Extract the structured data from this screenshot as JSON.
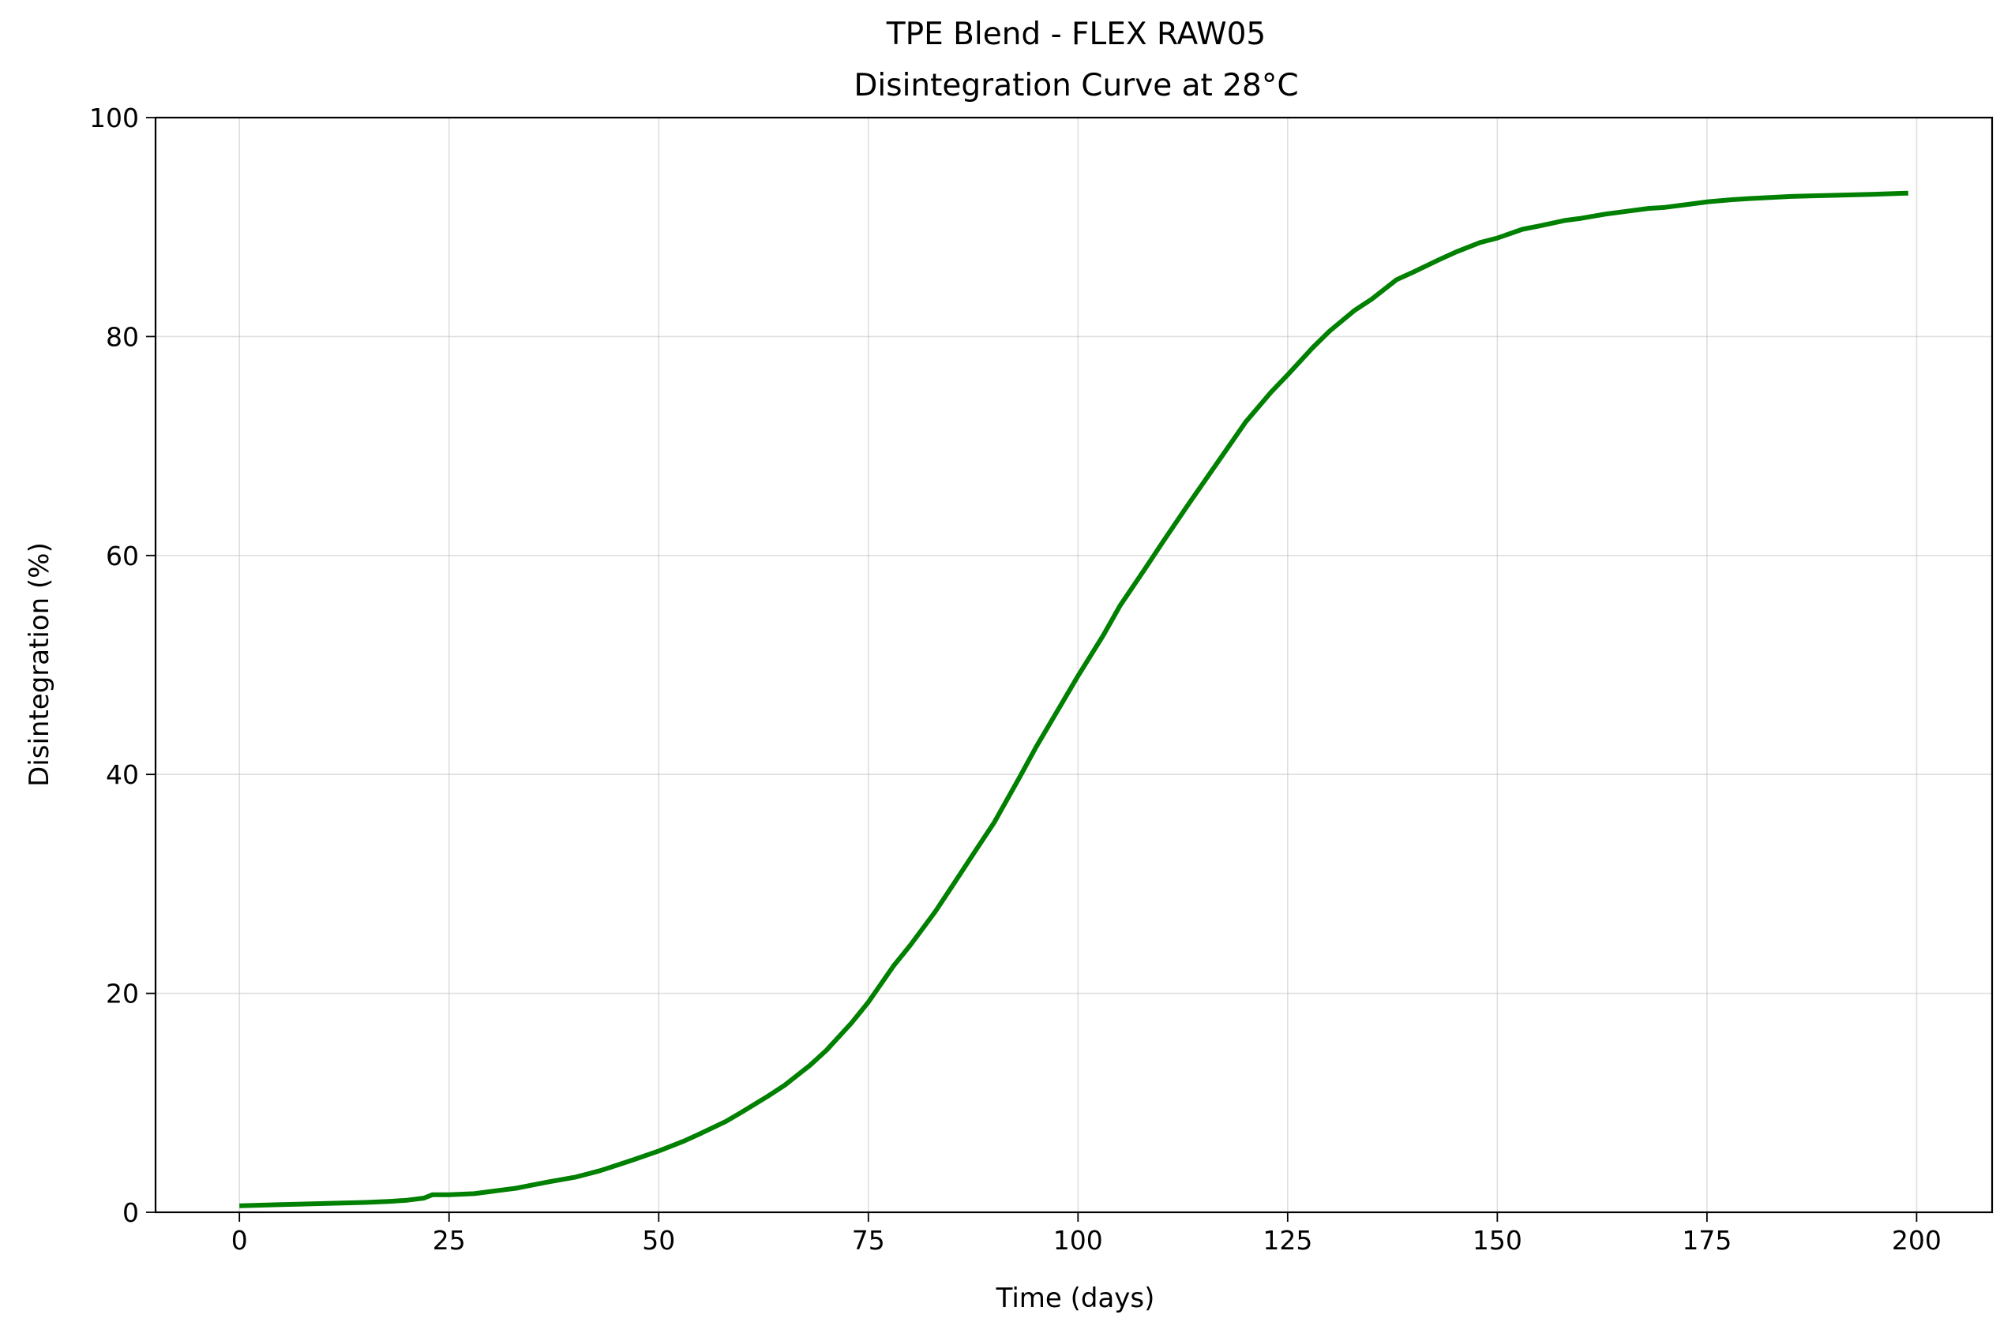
{
  "chart_data": {
    "type": "line",
    "title": [
      "TPE Blend - FLEX RAW05",
      "Disintegration Curve at 28°C"
    ],
    "xlabel": "Time (days)",
    "ylabel": "Disintegration (%)",
    "xlim": [
      -10,
      209
    ],
    "ylim": [
      0,
      100
    ],
    "xticks": [
      0,
      25,
      50,
      75,
      100,
      125,
      150,
      175,
      200
    ],
    "yticks": [
      0,
      20,
      40,
      60,
      80,
      100
    ],
    "grid": true,
    "series": [
      {
        "color": "#008000",
        "x": [
          0,
          5,
          10,
          15,
          18,
          20,
          22,
          23,
          25,
          28,
          30,
          33,
          35,
          37,
          40,
          43,
          45,
          47,
          50,
          53,
          55,
          58,
          60,
          63,
          65,
          68,
          70,
          73,
          75,
          78,
          80,
          83,
          85,
          88,
          90,
          93,
          95,
          98,
          100,
          103,
          105,
          108,
          110,
          113,
          115,
          118,
          120,
          123,
          125,
          128,
          130,
          133,
          135,
          138,
          140,
          143,
          145,
          148,
          150,
          153,
          155,
          158,
          160,
          163,
          165,
          168,
          170,
          173,
          175,
          178,
          180,
          185,
          190,
          195,
          199
        ],
        "y": [
          0.6,
          0.7,
          0.8,
          0.9,
          1.0,
          1.1,
          1.3,
          1.6,
          1.6,
          1.7,
          1.9,
          2.2,
          2.5,
          2.8,
          3.2,
          3.8,
          4.3,
          4.8,
          5.6,
          6.5,
          7.2,
          8.3,
          9.2,
          10.6,
          11.6,
          13.4,
          14.8,
          17.3,
          19.2,
          22.5,
          24.4,
          27.5,
          29.8,
          33.3,
          35.6,
          39.7,
          42.5,
          46.4,
          49.0,
          52.7,
          55.4,
          58.8,
          61.1,
          64.5,
          66.7,
          70.0,
          72.2,
          74.9,
          76.5,
          79.0,
          80.5,
          82.4,
          83.4,
          85.2,
          85.9,
          87.0,
          87.7,
          88.6,
          89.0,
          89.8,
          90.1,
          90.6,
          90.8,
          91.2,
          91.4,
          91.7,
          91.8,
          92.1,
          92.3,
          92.5,
          92.6,
          92.8,
          92.9,
          93.0,
          93.1
        ]
      }
    ]
  }
}
